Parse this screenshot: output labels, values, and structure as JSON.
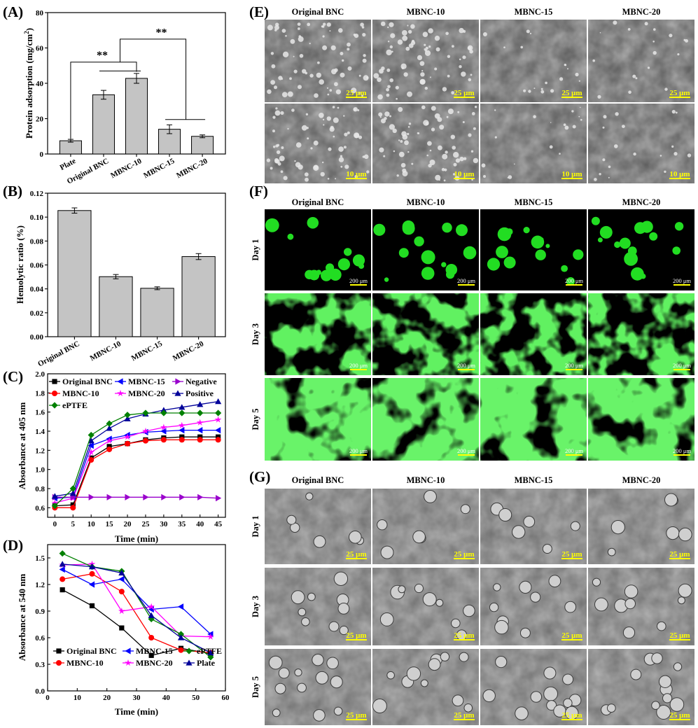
{
  "panels": {
    "A": "(A)",
    "B": "(B)",
    "C": "(C)",
    "D": "(D)",
    "E": "(E)",
    "F": "(F)",
    "G": "(G)"
  },
  "chart_data": [
    {
      "panel": "A",
      "type": "bar",
      "categories": [
        "Plate",
        "Original BNC",
        "MBNC-10",
        "MBNC-15",
        "MBNC-20"
      ],
      "values": [
        7.5,
        33.5,
        42.8,
        14.0,
        10.0
      ],
      "errors": [
        0.8,
        2.5,
        2.8,
        2.5,
        0.8
      ],
      "ylabel": "Protein adsorption (mg/cm",
      "ylabel_sup": "2",
      "ylabel_end": ")",
      "ylim": [
        0,
        80
      ],
      "yticks": [
        "0",
        "20",
        "40",
        "60",
        "80"
      ],
      "significance": [
        "**",
        "**"
      ],
      "bar_color": "#c4c4c4"
    },
    {
      "panel": "B",
      "type": "bar",
      "categories": [
        "Original BNC",
        "MBNC-10",
        "MBNC-15",
        "MBNC-20"
      ],
      "values": [
        0.1055,
        0.0502,
        0.0405,
        0.067
      ],
      "errors": [
        0.0022,
        0.0018,
        0.0012,
        0.0025
      ],
      "ylabel": "Hemolytic ratio (%)",
      "ylim": [
        0,
        0.12
      ],
      "yticks": [
        "0.00",
        "0.02",
        "0.04",
        "0.06",
        "0.08",
        "0.10",
        "0.12"
      ],
      "bar_color": "#c4c4c4"
    },
    {
      "panel": "C",
      "type": "line",
      "xlabel": "Time (min)",
      "ylabel": "Absorbance at 405 nm",
      "xlim": [
        -2,
        47
      ],
      "ylim": [
        0.5,
        2.0
      ],
      "xticks": [
        "0",
        "5",
        "10",
        "15",
        "20",
        "25",
        "30",
        "35",
        "40",
        "45"
      ],
      "yticks": [
        "0.6",
        "0.8",
        "1.0",
        "1.2",
        "1.4",
        "1.6",
        "1.8",
        "2.0"
      ],
      "x": [
        0,
        5,
        10,
        15,
        20,
        25,
        30,
        35,
        40,
        45
      ],
      "series": [
        {
          "name": "Original BNC",
          "color": "#000000",
          "marker": "square",
          "values": [
            0.62,
            0.63,
            1.12,
            1.24,
            1.27,
            1.31,
            1.33,
            1.34,
            1.34,
            1.34
          ]
        },
        {
          "name": "MBNC-10",
          "color": "#ff0000",
          "marker": "circle",
          "values": [
            0.6,
            0.6,
            1.1,
            1.21,
            1.27,
            1.3,
            1.31,
            1.31,
            1.31,
            1.31
          ]
        },
        {
          "name": "MBNC-15",
          "color": "#0000ff",
          "marker": "tri-left",
          "values": [
            0.7,
            0.71,
            1.25,
            1.32,
            1.36,
            1.39,
            1.4,
            1.41,
            1.41,
            1.41
          ]
        },
        {
          "name": "MBNC-20",
          "color": "#ff00ff",
          "marker": "star",
          "values": [
            0.65,
            0.7,
            1.18,
            1.3,
            1.34,
            1.4,
            1.44,
            1.46,
            1.49,
            1.52
          ]
        },
        {
          "name": "Negative",
          "color": "#9900cc",
          "marker": "tri-right",
          "values": [
            0.71,
            0.71,
            0.71,
            0.71,
            0.71,
            0.71,
            0.71,
            0.71,
            0.71,
            0.7
          ]
        },
        {
          "name": "Positive",
          "color": "#000099",
          "marker": "tri-up",
          "values": [
            0.72,
            0.75,
            1.3,
            1.43,
            1.53,
            1.58,
            1.62,
            1.65,
            1.68,
            1.71
          ]
        },
        {
          "name": "ePTFE",
          "color": "#008000",
          "marker": "diamond",
          "values": [
            0.62,
            0.8,
            1.36,
            1.48,
            1.57,
            1.59,
            1.59,
            1.59,
            1.59,
            1.59
          ]
        }
      ]
    },
    {
      "panel": "D",
      "type": "line",
      "xlabel": "Time (min)",
      "ylabel": "Absorbance at 540 nm",
      "xlim": [
        0,
        60
      ],
      "ylim": [
        0,
        1.65
      ],
      "xticks": [
        "0",
        "10",
        "20",
        "30",
        "40",
        "50",
        "60"
      ],
      "yticks": [
        "0.0",
        "0.3",
        "0.6",
        "0.9",
        "1.2",
        "1.5"
      ],
      "x": [
        5,
        15,
        25,
        35,
        45,
        55
      ],
      "series": [
        {
          "name": "Original BNC",
          "color": "#000000",
          "marker": "square",
          "values": [
            1.14,
            0.96,
            0.71,
            0.4,
            0.48,
            0.42
          ]
        },
        {
          "name": "MBNC-10",
          "color": "#ff0000",
          "marker": "circle",
          "values": [
            1.26,
            1.32,
            1.12,
            0.6,
            0.46,
            0.43
          ]
        },
        {
          "name": "MBNC-15",
          "color": "#0000ff",
          "marker": "tri-left",
          "values": [
            1.37,
            1.2,
            1.26,
            0.92,
            0.95,
            0.64
          ]
        },
        {
          "name": "MBNC-20",
          "color": "#ff00ff",
          "marker": "star",
          "values": [
            1.42,
            1.43,
            0.9,
            0.95,
            0.62,
            0.61
          ]
        },
        {
          "name": "ePTFE",
          "color": "#008000",
          "marker": "diamond",
          "values": [
            1.55,
            1.4,
            1.35,
            0.81,
            0.64,
            0.38
          ]
        },
        {
          "name": "Plate",
          "color": "#000099",
          "marker": "tri-up",
          "values": [
            1.43,
            1.4,
            1.33,
            0.85,
            0.6,
            0.43
          ]
        }
      ]
    }
  ],
  "image_grids": {
    "E": {
      "columns": [
        "Original BNC",
        "MBNC-10",
        "MBNC-15",
        "MBNC-20"
      ],
      "scalebars": [
        [
          "25 μm",
          "25 μm",
          "25 μm",
          "25 μm"
        ],
        [
          "10 μm",
          "10 μm",
          "10 μm",
          "10 μm"
        ]
      ]
    },
    "F": {
      "columns": [
        "Original BNC",
        "MBNC-10",
        "MBNC-15",
        "MBNC-20"
      ],
      "rows": [
        "Day 1",
        "Day 3",
        "Day 5"
      ],
      "scalebar": "200 μm"
    },
    "G": {
      "columns": [
        "Original BNC",
        "MBNC-10",
        "MBNC-15",
        "MBNC-20"
      ],
      "rows": [
        "Day 1",
        "Day 3",
        "Day 5"
      ],
      "scalebar": "25 μm"
    }
  },
  "colors": {
    "sem_background": "#5a5a5a",
    "fluorescence_background": "#000000",
    "fluorescence_green": "#22dd22",
    "scalebar_yellow": "#ffff00"
  }
}
